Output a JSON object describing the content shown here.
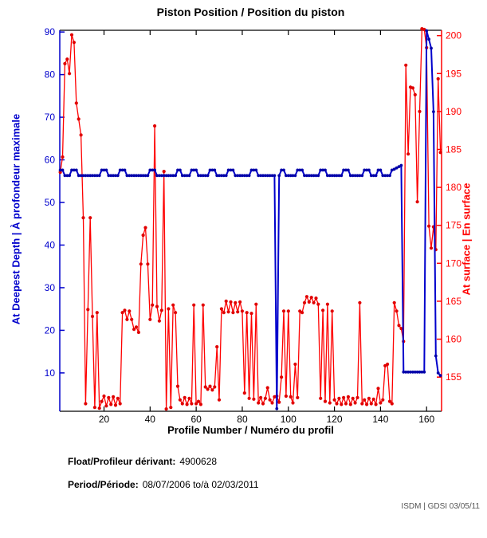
{
  "title": "Piston Position / Position du piston",
  "footer": {
    "float_label": "Float/Profileur dérivant:",
    "float_value": "4900628",
    "period_label": "Period/Période:",
    "period_value": "08/07/2006 to/à 02/03/2011",
    "credit": "ISDM | GDSI 03/05/11"
  },
  "chart_data": {
    "type": "line",
    "title": "Piston Position / Position du piston",
    "xlabel": "Profile Number / Numéro du profil",
    "ylabel_left": "At Deepest Depth | À profondeur maximale",
    "ylabel_right": "At surface | En surface",
    "grid": false,
    "legend": "none",
    "xlim": [
      0.8,
      166.5
    ],
    "ylim_left": [
      1.0,
      90.4
    ],
    "ylim_right": [
      150.5,
      200.7
    ],
    "x_ticks": [
      20,
      40,
      60,
      80,
      100,
      120,
      140,
      160
    ],
    "left_ticks": [
      90,
      80,
      70,
      60,
      50,
      40,
      30,
      20,
      10
    ],
    "right_ticks": [
      200,
      195,
      190,
      185,
      180,
      175,
      170,
      165,
      160,
      155
    ],
    "colors": {
      "left_axis": "#0000cc",
      "right_axis": "#ff0000",
      "frame": "#000000",
      "deepest_line": "#0000cc",
      "deepest_marker": "#0000aa",
      "surface_line": "#ff0000",
      "surface_marker": "#e00000"
    },
    "x_start": 1,
    "series": [
      {
        "name": "at-deepest-depth",
        "axis": "left",
        "values": [
          57.6,
          57.6,
          56.3,
          56.3,
          56.3,
          57.6,
          57.6,
          57.6,
          56.3,
          56.3,
          56.3,
          56.3,
          56.3,
          56.3,
          56.3,
          56.3,
          56.3,
          56.3,
          57.6,
          57.6,
          57.6,
          56.3,
          56.3,
          56.3,
          56.3,
          56.3,
          57.6,
          57.6,
          57.6,
          56.3,
          56.3,
          56.3,
          56.3,
          56.3,
          56.3,
          56.3,
          56.3,
          56.3,
          56.3,
          57.6,
          57.6,
          57.6,
          56.3,
          56.3,
          56.3,
          56.3,
          56.3,
          56.3,
          56.3,
          56.3,
          56.3,
          57.6,
          57.6,
          56.3,
          56.3,
          56.3,
          56.3,
          57.6,
          57.6,
          57.6,
          56.3,
          56.3,
          56.3,
          56.3,
          56.3,
          57.6,
          57.6,
          57.6,
          56.3,
          56.3,
          56.3,
          56.3,
          56.3,
          57.6,
          57.6,
          57.6,
          56.3,
          56.3,
          56.3,
          56.3,
          56.3,
          56.3,
          56.3,
          57.6,
          57.6,
          57.6,
          56.3,
          56.3,
          56.3,
          56.3,
          56.3,
          56.3,
          56.3,
          56.3,
          1.6,
          56.3,
          57.6,
          57.6,
          56.3,
          56.3,
          56.3,
          56.3,
          56.3,
          57.6,
          57.6,
          57.6,
          56.3,
          56.3,
          56.3,
          56.3,
          56.3,
          56.3,
          56.3,
          57.6,
          57.6,
          57.6,
          56.3,
          56.3,
          56.3,
          56.3,
          56.3,
          56.3,
          56.3,
          57.6,
          57.6,
          57.6,
          56.3,
          56.3,
          56.3,
          56.3,
          56.3,
          56.3,
          57.6,
          57.6,
          57.6,
          56.3,
          56.3,
          56.3,
          57.6,
          57.6,
          56.3,
          56.3,
          56.3,
          56.3,
          57.6,
          57.8,
          58.1,
          58.4,
          58.7,
          10.2,
          10.2,
          10.2,
          10.2,
          10.2,
          10.2,
          10.2,
          10.2,
          10.2,
          10.2,
          90.3,
          88.3,
          86.2,
          71.3,
          14.0,
          10.0,
          9.4
        ]
      },
      {
        "name": "at-surface",
        "axis": "right",
        "values": [
          182.0,
          184.0,
          196.3,
          196.9,
          195.0,
          200.1,
          199.1,
          191.1,
          189.0,
          186.9,
          176.0,
          151.5,
          163.9,
          176.0,
          163.0,
          151.0,
          163.5,
          150.9,
          151.8,
          152.5,
          151.2,
          152.3,
          151.4,
          152.4,
          151.3,
          152.2,
          151.5,
          163.5,
          163.8,
          162.6,
          163.7,
          162.6,
          161.3,
          161.6,
          160.9,
          169.9,
          173.7,
          174.7,
          169.9,
          162.6,
          164.5,
          188.1,
          164.3,
          162.4,
          163.8,
          182.1,
          150.8,
          164.0,
          151.0,
          164.5,
          163.5,
          153.8,
          152.0,
          151.5,
          152.3,
          151.4,
          152.2,
          151.5,
          164.5,
          151.5,
          151.8,
          151.4,
          164.5,
          153.7,
          153.4,
          153.8,
          153.3,
          153.7,
          159.0,
          152.0,
          164.0,
          163.5,
          165.0,
          163.6,
          164.9,
          163.5,
          164.8,
          163.6,
          164.9,
          163.7,
          152.9,
          163.5,
          152.2,
          163.4,
          152.1,
          164.6,
          151.6,
          152.3,
          151.5,
          152.2,
          153.6,
          152.0,
          151.6,
          152.4,
          152.5,
          151.7,
          155.0,
          163.7,
          152.5,
          163.7,
          152.4,
          151.6,
          156.7,
          152.3,
          163.7,
          163.5,
          164.8,
          165.6,
          164.9,
          165.5,
          164.8,
          165.4,
          164.6,
          152.2,
          163.8,
          151.8,
          164.6,
          151.6,
          163.7,
          152.0,
          151.5,
          152.2,
          151.4,
          152.3,
          151.5,
          152.4,
          151.4,
          152.2,
          151.6,
          152.3,
          164.8,
          151.5,
          152.0,
          151.4,
          152.2,
          151.5,
          152.1,
          151.4,
          153.5,
          151.6,
          152.0,
          156.5,
          156.7,
          151.8,
          151.5,
          164.8,
          163.7,
          161.8,
          161.4,
          159.7,
          196.1,
          184.4,
          193.2,
          193.1,
          192.2,
          178.1,
          190.0,
          200.9,
          200.8,
          198.4,
          174.9,
          172.0,
          174.8,
          171.8,
          194.3,
          184.6
        ]
      }
    ]
  }
}
